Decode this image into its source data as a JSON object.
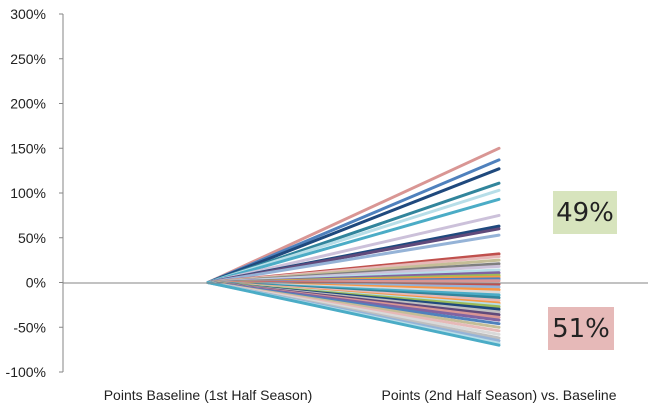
{
  "chart_data": {
    "type": "line",
    "categories": [
      "Points Baseline (1st Half Season)",
      "Points (2nd Half Season) vs. Baseline"
    ],
    "y_ticks": [
      "300%",
      "250%",
      "200%",
      "150%",
      "100%",
      "50%",
      "0%",
      "-50%",
      "-100%"
    ],
    "ylim": [
      -100,
      300
    ],
    "grid": false,
    "series": [
      {
        "values": [
          0,
          150
        ],
        "color": "#d99694"
      },
      {
        "values": [
          0,
          137
        ],
        "color": "#4f81bd"
      },
      {
        "values": [
          0,
          127
        ],
        "color": "#1f497d"
      },
      {
        "values": [
          0,
          111
        ],
        "color": "#31859c"
      },
      {
        "values": [
          0,
          103
        ],
        "color": "#b7dee8"
      },
      {
        "values": [
          0,
          93
        ],
        "color": "#4bacc6"
      },
      {
        "values": [
          0,
          75
        ],
        "color": "#ccc1da"
      },
      {
        "values": [
          0,
          63
        ],
        "color": "#1f497d"
      },
      {
        "values": [
          0,
          60
        ],
        "color": "#604a7b"
      },
      {
        "values": [
          0,
          53
        ],
        "color": "#95b3d7"
      },
      {
        "values": [
          0,
          32
        ],
        "color": "#c0504d"
      },
      {
        "values": [
          0,
          29
        ],
        "color": "#e6b9b8"
      },
      {
        "values": [
          0,
          25
        ],
        "color": "#c4bd97"
      },
      {
        "values": [
          0,
          21
        ],
        "color": "#7f7f7f"
      },
      {
        "values": [
          0,
          18
        ],
        "color": "#ccc1da"
      },
      {
        "values": [
          0,
          14
        ],
        "color": "#b7dee8"
      },
      {
        "values": [
          0,
          11
        ],
        "color": "#8064a2"
      },
      {
        "values": [
          0,
          8
        ],
        "color": "#9bbb59"
      },
      {
        "values": [
          0,
          6
        ],
        "color": "#f79646"
      },
      {
        "values": [
          0,
          4
        ],
        "color": "#4f81bd"
      },
      {
        "values": [
          0,
          2
        ],
        "color": "#d99694"
      },
      {
        "values": [
          0,
          -2
        ],
        "color": "#c0504d"
      },
      {
        "values": [
          0,
          -5
        ],
        "color": "#95b3d7"
      },
      {
        "values": [
          0,
          -8
        ],
        "color": "#f79646"
      },
      {
        "values": [
          0,
          -11
        ],
        "color": "#d9d9d9"
      },
      {
        "values": [
          0,
          -14
        ],
        "color": "#4bacc6"
      },
      {
        "values": [
          0,
          -17
        ],
        "color": "#31859c"
      },
      {
        "values": [
          0,
          -20
        ],
        "color": "#e6b9b8"
      },
      {
        "values": [
          0,
          -23
        ],
        "color": "#f79646"
      },
      {
        "values": [
          0,
          -25
        ],
        "color": "#b7dee8"
      },
      {
        "values": [
          0,
          -27
        ],
        "color": "#9bbb59"
      },
      {
        "values": [
          0,
          -30
        ],
        "color": "#1f497d"
      },
      {
        "values": [
          0,
          -33
        ],
        "color": "#bfbfbf"
      },
      {
        "values": [
          0,
          -36
        ],
        "color": "#604a7b"
      },
      {
        "values": [
          0,
          -39
        ],
        "color": "#d99694"
      },
      {
        "values": [
          0,
          -42
        ],
        "color": "#8064a2"
      },
      {
        "values": [
          0,
          -46
        ],
        "color": "#4f81bd"
      },
      {
        "values": [
          0,
          -50
        ],
        "color": "#c4bd97"
      },
      {
        "values": [
          0,
          -54
        ],
        "color": "#e6b9b8"
      },
      {
        "values": [
          0,
          -58
        ],
        "color": "#d9d9d9"
      },
      {
        "values": [
          0,
          -62
        ],
        "color": "#bfbfbf"
      },
      {
        "values": [
          0,
          -65
        ],
        "color": "#95b3d7"
      },
      {
        "values": [
          0,
          -68
        ],
        "color": "#b7dee8"
      },
      {
        "values": [
          0,
          -70
        ],
        "color": "#4bacc6"
      }
    ],
    "annotations": [
      {
        "text": "49%",
        "position": "upper-right",
        "fill": "#d7e4bd"
      },
      {
        "text": "51%",
        "position": "lower-right",
        "fill": "#e6b9b8"
      }
    ]
  }
}
